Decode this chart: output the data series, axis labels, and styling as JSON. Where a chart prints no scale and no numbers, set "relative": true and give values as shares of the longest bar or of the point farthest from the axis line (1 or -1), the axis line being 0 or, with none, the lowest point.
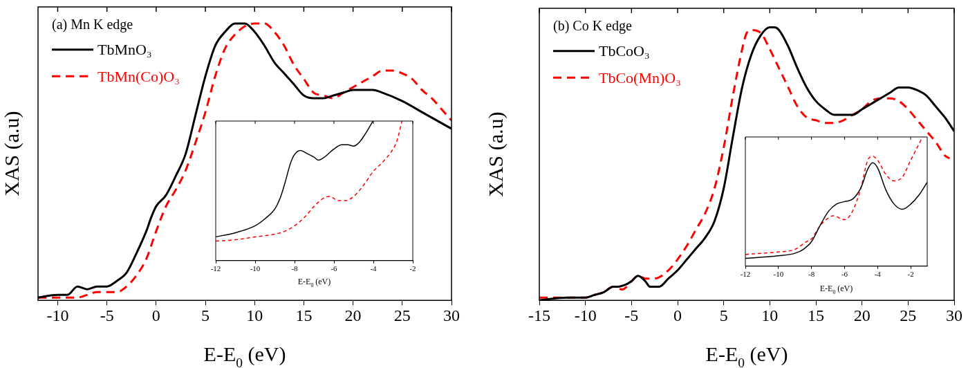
{
  "chart_data": [
    {
      "type": "line",
      "relative": true,
      "xlabel": "E-E$_{0}$ (eV)",
      "ylabel": "XAS (a.u)",
      "annotations": [
        "(a) Mn K edge"
      ],
      "legend": "top left",
      "xlim": [
        -12,
        30
      ],
      "xticks": [
        -10,
        -5,
        0,
        5,
        10,
        15,
        20,
        25,
        30
      ],
      "series": [
        {
          "name": "TbMnO₃",
          "color": "#000000",
          "line_style": "solid",
          "x": [
            -12,
            -10,
            -9,
            -8,
            -7,
            -6,
            -5,
            -4,
            -3,
            -2,
            -1,
            -0.5,
            0,
            1,
            2,
            3,
            4,
            5,
            6,
            7,
            8,
            8.5,
            9,
            10,
            11,
            12,
            13,
            14,
            15,
            16,
            17,
            18,
            19,
            20,
            21,
            22,
            23,
            25,
            27,
            29,
            30
          ],
          "values": [
            0.01,
            0.02,
            0.02,
            0.05,
            0.04,
            0.05,
            0.05,
            0.07,
            0.1,
            0.17,
            0.25,
            0.3,
            0.34,
            0.38,
            0.45,
            0.53,
            0.67,
            0.81,
            0.92,
            0.97,
            1.0,
            1.0,
            1.0,
            0.97,
            0.92,
            0.86,
            0.82,
            0.78,
            0.74,
            0.73,
            0.73,
            0.74,
            0.75,
            0.76,
            0.76,
            0.76,
            0.75,
            0.72,
            0.68,
            0.64,
            0.62
          ]
        },
        {
          "name": "TbMn(Co)O₃",
          "color": "#ff0000",
          "line_style": "dashed",
          "x": [
            -12,
            -10,
            -9,
            -8,
            -7,
            -6,
            -5,
            -4,
            -3,
            -2,
            -1,
            0,
            1,
            2,
            3,
            4,
            5,
            6,
            7,
            8,
            9,
            10,
            11,
            12,
            13,
            14,
            15,
            16,
            17,
            18,
            19,
            20,
            21,
            22,
            23,
            24,
            25,
            26,
            27,
            28,
            29,
            30
          ],
          "values": [
            0.01,
            0.01,
            0.01,
            0.01,
            0.02,
            0.03,
            0.03,
            0.03,
            0.05,
            0.09,
            0.15,
            0.25,
            0.34,
            0.4,
            0.47,
            0.57,
            0.68,
            0.81,
            0.91,
            0.96,
            0.99,
            1.0,
            1.0,
            0.97,
            0.92,
            0.85,
            0.8,
            0.75,
            0.74,
            0.73,
            0.75,
            0.77,
            0.79,
            0.81,
            0.83,
            0.83,
            0.82,
            0.8,
            0.76,
            0.73,
            0.69,
            0.65
          ]
        }
      ]
    },
    {
      "type": "line",
      "relative": true,
      "xlabel": "E-E$_{0}$ (eV)",
      "xlim": [
        -12,
        -2
      ],
      "xticks": [
        -12,
        -10,
        -8,
        -6,
        -4,
        -2
      ],
      "series": [
        {
          "color": "#000000",
          "line_style": "solid",
          "x": [
            -12,
            -11,
            -10,
            -9.5,
            -9,
            -8.7,
            -8.5,
            -8.2,
            -8,
            -7.7,
            -7.4,
            -7,
            -6.8,
            -6.5,
            -6,
            -5.6,
            -5.3,
            -5,
            -4.7,
            -4.4,
            -4.02
          ],
          "values": [
            0.17,
            0.2,
            0.25,
            0.3,
            0.37,
            0.46,
            0.55,
            0.7,
            0.76,
            0.79,
            0.77,
            0.74,
            0.72,
            0.74,
            0.8,
            0.83,
            0.83,
            0.82,
            0.85,
            0.91,
            1.0
          ]
        },
        {
          "color": "#ff0000",
          "line_style": "dashed",
          "x": [
            -12,
            -11,
            -10,
            -9,
            -8.5,
            -8,
            -7.5,
            -7,
            -6.5,
            -6.2,
            -5.8,
            -5.4,
            -5,
            -4.5,
            -4,
            -3.5,
            -3,
            -2.8,
            -2.55
          ],
          "values": [
            0.14,
            0.15,
            0.17,
            0.19,
            0.21,
            0.25,
            0.31,
            0.39,
            0.45,
            0.46,
            0.43,
            0.43,
            0.46,
            0.54,
            0.64,
            0.71,
            0.8,
            0.86,
            1.0
          ]
        }
      ]
    },
    {
      "type": "line",
      "relative": true,
      "xlabel": "E-E$_{0}$ (eV)",
      "ylabel": "XAS (a.u)",
      "annotations": [
        "(b) Co K edge"
      ],
      "legend": "top left",
      "xlim": [
        -15,
        30
      ],
      "xticks": [
        -15,
        -10,
        -5,
        0,
        5,
        10,
        15,
        20,
        25,
        30
      ],
      "series": [
        {
          "name": "TbCoO₃",
          "color": "#000000",
          "line_style": "solid",
          "x": [
            -15,
            -12,
            -10,
            -9,
            -8,
            -7,
            -6.5,
            -5.5,
            -5,
            -4.3,
            -3.5,
            -3,
            -2.5,
            -2,
            -1,
            0,
            1,
            2,
            3,
            4,
            5,
            6,
            7,
            8,
            9,
            10,
            10.5,
            11,
            12,
            13,
            14,
            15,
            16,
            17,
            18,
            19,
            20,
            21,
            22,
            23,
            24,
            25,
            26,
            27,
            28,
            29,
            30
          ],
          "values": [
            0.0,
            0.01,
            0.01,
            0.02,
            0.03,
            0.05,
            0.05,
            0.06,
            0.07,
            0.09,
            0.07,
            0.05,
            0.05,
            0.05,
            0.08,
            0.11,
            0.15,
            0.19,
            0.23,
            0.29,
            0.41,
            0.6,
            0.78,
            0.9,
            0.97,
            1.0,
            1.0,
            0.99,
            0.93,
            0.85,
            0.78,
            0.73,
            0.7,
            0.68,
            0.68,
            0.68,
            0.7,
            0.72,
            0.74,
            0.76,
            0.78,
            0.78,
            0.77,
            0.75,
            0.71,
            0.67,
            0.62
          ]
        },
        {
          "name": "TbCo(Mn)O₃",
          "color": "#ff0000",
          "line_style": "dashed",
          "x": [
            -15,
            -12,
            -10,
            -9,
            -8,
            -7,
            -6,
            -5,
            -4.3,
            -3.5,
            -2.5,
            -1,
            0,
            1,
            2,
            3,
            4,
            5,
            6,
            7,
            7.5,
            8,
            9,
            10,
            11,
            12,
            13,
            14,
            15,
            16,
            17,
            18,
            19,
            20,
            21,
            22,
            23,
            24,
            25,
            26,
            27,
            28,
            29,
            29.5
          ],
          "values": [
            0.01,
            0.01,
            0.01,
            0.02,
            0.03,
            0.05,
            0.04,
            0.07,
            0.09,
            0.08,
            0.08,
            0.11,
            0.15,
            0.2,
            0.26,
            0.32,
            0.41,
            0.56,
            0.75,
            0.92,
            0.98,
            0.99,
            0.98,
            0.92,
            0.85,
            0.78,
            0.71,
            0.67,
            0.66,
            0.65,
            0.65,
            0.66,
            0.68,
            0.7,
            0.73,
            0.74,
            0.74,
            0.73,
            0.7,
            0.66,
            0.62,
            0.58,
            0.53,
            0.52
          ]
        }
      ]
    },
    {
      "type": "line",
      "relative": true,
      "xlabel": "E-E$_{0}$ (eV)",
      "xlim": [
        -12,
        -1
      ],
      "xticks": [
        -12,
        -10,
        -8,
        -6,
        -4,
        -2
      ],
      "series": [
        {
          "color": "#000000",
          "line_style": "solid",
          "x": [
            -12,
            -11,
            -10,
            -9,
            -8.5,
            -8,
            -7.5,
            -7,
            -6.5,
            -6,
            -5.5,
            -5,
            -4.6,
            -4.3,
            -4,
            -3.5,
            -3,
            -2.5,
            -2,
            -1.5,
            -1
          ],
          "values": [
            0.06,
            0.07,
            0.08,
            0.1,
            0.13,
            0.19,
            0.31,
            0.42,
            0.48,
            0.5,
            0.52,
            0.61,
            0.75,
            0.8,
            0.76,
            0.59,
            0.48,
            0.44,
            0.48,
            0.55,
            0.65
          ]
        },
        {
          "color": "#ff0000",
          "line_style": "dashed",
          "x": [
            -12,
            -11,
            -10,
            -9,
            -8.3,
            -8,
            -7.5,
            -7,
            -6.7,
            -6,
            -5.5,
            -5,
            -4.6,
            -4.3,
            -4,
            -3.5,
            -3,
            -2.5,
            -2,
            -1.28
          ],
          "values": [
            0.09,
            0.1,
            0.11,
            0.13,
            0.19,
            0.21,
            0.31,
            0.37,
            0.39,
            0.36,
            0.43,
            0.61,
            0.82,
            0.85,
            0.82,
            0.71,
            0.66,
            0.69,
            0.82,
            1.0
          ]
        }
      ]
    }
  ]
}
